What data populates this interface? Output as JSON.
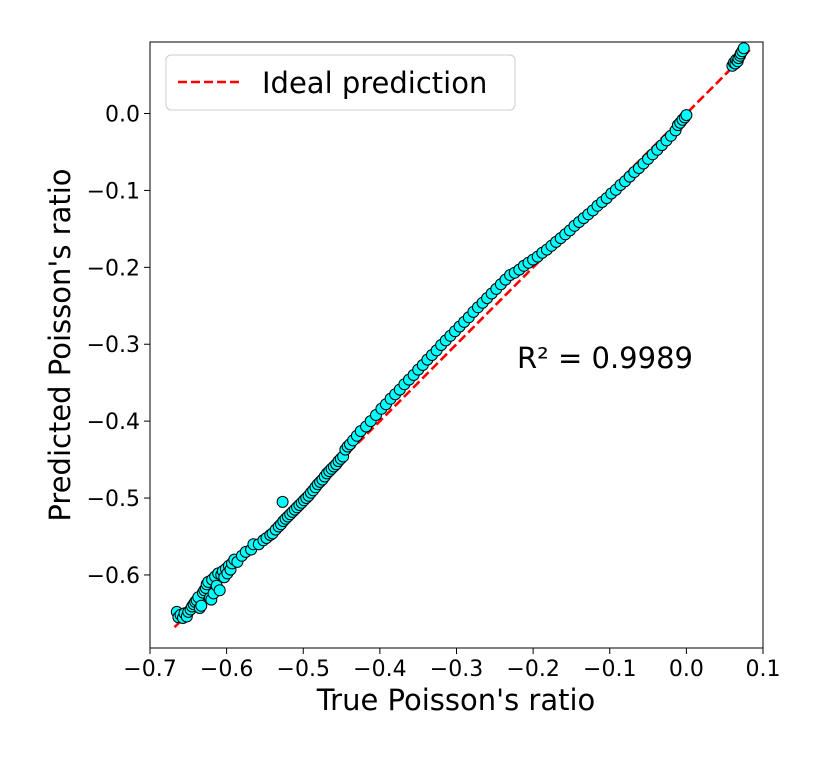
{
  "chart_data": {
    "type": "scatter",
    "xlabel": "True Poisson's ratio",
    "ylabel": "Predicted Poisson's ratio",
    "xlim": [
      -0.7,
      0.1
    ],
    "ylim": [
      -0.695,
      0.093
    ],
    "xticks": [
      -0.7,
      -0.6,
      -0.5,
      -0.4,
      -0.3,
      -0.2,
      -0.1,
      0.0,
      0.1
    ],
    "xtick_labels": [
      "−0.7",
      "−0.6",
      "−0.5",
      "−0.4",
      "−0.3",
      "−0.2",
      "−0.1",
      "0.0",
      "0.1"
    ],
    "yticks": [
      -0.6,
      -0.5,
      -0.4,
      -0.3,
      -0.2,
      -0.1,
      0.0
    ],
    "ytick_labels": [
      "−0.6",
      "−0.5",
      "−0.4",
      "−0.3",
      "−0.2",
      "−0.1",
      "0.0"
    ],
    "grid": false,
    "legend": {
      "location": "top-left",
      "entries": [
        {
          "label": "Ideal prediction",
          "style": "dashed",
          "color": "#ff0000"
        }
      ]
    },
    "annotation": "R² = 0.9989",
    "ideal_line": {
      "x": [
        -0.668,
        0.085
      ],
      "y": [
        -0.668,
        0.085
      ]
    },
    "marker_color": "#00ffff",
    "marker_edge": "#000000",
    "points": [
      [
        -0.665,
        -0.648
      ],
      [
        -0.663,
        -0.655
      ],
      [
        -0.66,
        -0.652
      ],
      [
        -0.657,
        -0.656
      ],
      [
        -0.655,
        -0.65
      ],
      [
        -0.652,
        -0.654
      ],
      [
        -0.65,
        -0.648
      ],
      [
        -0.647,
        -0.645
      ],
      [
        -0.645,
        -0.641
      ],
      [
        -0.643,
        -0.638
      ],
      [
        -0.641,
        -0.635
      ],
      [
        -0.639,
        -0.633
      ],
      [
        -0.637,
        -0.629
      ],
      [
        -0.635,
        -0.643
      ],
      [
        -0.633,
        -0.64
      ],
      [
        -0.631,
        -0.623
      ],
      [
        -0.629,
        -0.62
      ],
      [
        -0.627,
        -0.617
      ],
      [
        -0.626,
        -0.612
      ],
      [
        -0.624,
        -0.609
      ],
      [
        -0.622,
        -0.63
      ],
      [
        -0.62,
        -0.632
      ],
      [
        -0.619,
        -0.606
      ],
      [
        -0.617,
        -0.624
      ],
      [
        -0.615,
        -0.602
      ],
      [
        -0.613,
        -0.614
      ],
      [
        -0.611,
        -0.598
      ],
      [
        -0.609,
        -0.62
      ],
      [
        -0.607,
        -0.6
      ],
      [
        -0.605,
        -0.595
      ],
      [
        -0.603,
        -0.603
      ],
      [
        -0.601,
        -0.592
      ],
      [
        -0.599,
        -0.598
      ],
      [
        -0.597,
        -0.588
      ],
      [
        -0.595,
        -0.593
      ],
      [
        -0.593,
        -0.585
      ],
      [
        -0.59,
        -0.58
      ],
      [
        -0.586,
        -0.583
      ],
      [
        -0.58,
        -0.575
      ],
      [
        -0.575,
        -0.57
      ],
      [
        -0.568,
        -0.567
      ],
      [
        -0.565,
        -0.56
      ],
      [
        -0.558,
        -0.56
      ],
      [
        -0.552,
        -0.555
      ],
      [
        -0.548,
        -0.552
      ],
      [
        -0.543,
        -0.548
      ],
      [
        -0.54,
        -0.546
      ],
      [
        -0.536,
        -0.541
      ],
      [
        -0.532,
        -0.537
      ],
      [
        -0.529,
        -0.534
      ],
      [
        -0.526,
        -0.53
      ],
      [
        -0.523,
        -0.527
      ],
      [
        -0.527,
        -0.505
      ],
      [
        -0.52,
        -0.524
      ],
      [
        -0.517,
        -0.521
      ],
      [
        -0.514,
        -0.518
      ],
      [
        -0.511,
        -0.515
      ],
      [
        -0.508,
        -0.512
      ],
      [
        -0.505,
        -0.509
      ],
      [
        -0.502,
        -0.506
      ],
      [
        -0.499,
        -0.503
      ],
      [
        -0.496,
        -0.5
      ],
      [
        -0.493,
        -0.497
      ],
      [
        -0.49,
        -0.493
      ],
      [
        -0.487,
        -0.49
      ],
      [
        -0.484,
        -0.486
      ],
      [
        -0.481,
        -0.482
      ],
      [
        -0.478,
        -0.479
      ],
      [
        -0.475,
        -0.476
      ],
      [
        -0.472,
        -0.472
      ],
      [
        -0.469,
        -0.468
      ],
      [
        -0.466,
        -0.465
      ],
      [
        -0.463,
        -0.462
      ],
      [
        -0.46,
        -0.459
      ],
      [
        -0.457,
        -0.456
      ],
      [
        -0.454,
        -0.452
      ],
      [
        -0.451,
        -0.449
      ],
      [
        -0.448,
        -0.446
      ],
      [
        -0.445,
        -0.437
      ],
      [
        -0.442,
        -0.433
      ],
      [
        -0.439,
        -0.43
      ],
      [
        -0.435,
        -0.425
      ],
      [
        -0.43,
        -0.419
      ],
      [
        -0.425,
        -0.413
      ],
      [
        -0.418,
        -0.407
      ],
      [
        -0.412,
        -0.4
      ],
      [
        -0.405,
        -0.392
      ],
      [
        -0.398,
        -0.384
      ],
      [
        -0.392,
        -0.378
      ],
      [
        -0.386,
        -0.371
      ],
      [
        -0.38,
        -0.365
      ],
      [
        -0.374,
        -0.359
      ],
      [
        -0.368,
        -0.352
      ],
      [
        -0.362,
        -0.346
      ],
      [
        -0.356,
        -0.34
      ],
      [
        -0.35,
        -0.333
      ],
      [
        -0.344,
        -0.327
      ],
      [
        -0.338,
        -0.32
      ],
      [
        -0.332,
        -0.314
      ],
      [
        -0.326,
        -0.308
      ],
      [
        -0.32,
        -0.301
      ],
      [
        -0.314,
        -0.295
      ],
      [
        -0.308,
        -0.289
      ],
      [
        -0.302,
        -0.283
      ],
      [
        -0.296,
        -0.277
      ],
      [
        -0.29,
        -0.271
      ],
      [
        -0.284,
        -0.265
      ],
      [
        -0.278,
        -0.258
      ],
      [
        -0.272,
        -0.252
      ],
      [
        -0.266,
        -0.246
      ],
      [
        -0.26,
        -0.24
      ],
      [
        -0.254,
        -0.234
      ],
      [
        -0.248,
        -0.228
      ],
      [
        -0.242,
        -0.222
      ],
      [
        -0.236,
        -0.216
      ],
      [
        -0.23,
        -0.21
      ],
      [
        -0.224,
        -0.207
      ],
      [
        -0.218,
        -0.203
      ],
      [
        -0.212,
        -0.198
      ],
      [
        -0.206,
        -0.194
      ],
      [
        -0.2,
        -0.19
      ],
      [
        -0.194,
        -0.186
      ],
      [
        -0.188,
        -0.181
      ],
      [
        -0.182,
        -0.177
      ],
      [
        -0.176,
        -0.172
      ],
      [
        -0.17,
        -0.167
      ],
      [
        -0.164,
        -0.162
      ],
      [
        -0.158,
        -0.157
      ],
      [
        -0.152,
        -0.152
      ],
      [
        -0.146,
        -0.146
      ],
      [
        -0.14,
        -0.141
      ],
      [
        -0.134,
        -0.136
      ],
      [
        -0.128,
        -0.131
      ],
      [
        -0.122,
        -0.126
      ],
      [
        -0.116,
        -0.12
      ],
      [
        -0.11,
        -0.115
      ],
      [
        -0.104,
        -0.11
      ],
      [
        -0.098,
        -0.104
      ],
      [
        -0.092,
        -0.099
      ],
      [
        -0.086,
        -0.093
      ],
      [
        -0.08,
        -0.088
      ],
      [
        -0.074,
        -0.082
      ],
      [
        -0.068,
        -0.076
      ],
      [
        -0.062,
        -0.071
      ],
      [
        -0.056,
        -0.065
      ],
      [
        -0.05,
        -0.059
      ],
      [
        -0.044,
        -0.053
      ],
      [
        -0.038,
        -0.047
      ],
      [
        -0.032,
        -0.041
      ],
      [
        -0.026,
        -0.035
      ],
      [
        -0.02,
        -0.029
      ],
      [
        -0.014,
        -0.022
      ],
      [
        -0.011,
        -0.015
      ],
      [
        -0.008,
        -0.012
      ],
      [
        -0.005,
        -0.008
      ],
      [
        -0.002,
        -0.005
      ],
      [
        0.0,
        -0.002
      ],
      [
        0.06,
        0.062
      ],
      [
        0.062,
        0.066
      ],
      [
        0.064,
        0.065
      ],
      [
        0.065,
        0.07
      ],
      [
        0.067,
        0.068
      ],
      [
        0.068,
        0.072
      ],
      [
        0.07,
        0.075
      ],
      [
        0.071,
        0.078
      ],
      [
        0.073,
        0.081
      ],
      [
        0.075,
        0.085
      ]
    ]
  }
}
